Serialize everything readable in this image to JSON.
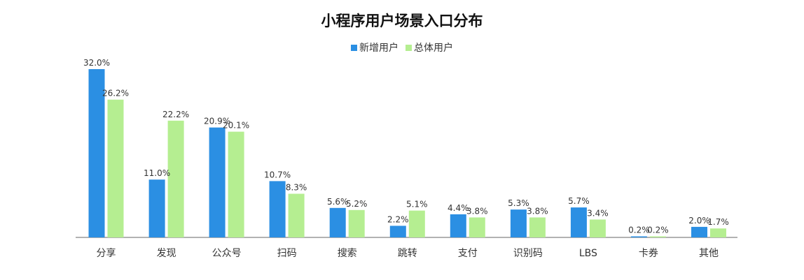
{
  "chart_data": {
    "type": "bar",
    "title": "小程序用户场景入口分布",
    "xlabel": "",
    "ylabel": "",
    "ylim": [
      0,
      35
    ],
    "grid": false,
    "legend_position": "top-center",
    "categories": [
      "分享",
      "发现",
      "公众号",
      "扫码",
      "搜索",
      "跳转",
      "支付",
      "识别码",
      "LBS",
      "卡券",
      "其他"
    ],
    "series": [
      {
        "name": "新增用户",
        "color": "#2b8fe3",
        "values": [
          32.0,
          11.0,
          20.9,
          10.7,
          5.6,
          2.2,
          4.4,
          5.3,
          5.7,
          0.2,
          2.0
        ],
        "labels": [
          "32.0%",
          "11.0%",
          "20.9%",
          "10.7%",
          "5.6%",
          "2.2%",
          "4.4%",
          "5.3%",
          "5.7%",
          "0.2%",
          "2.0%"
        ]
      },
      {
        "name": "总体用户",
        "color": "#b5ee91",
        "values": [
          26.2,
          22.2,
          20.1,
          8.3,
          5.2,
          5.1,
          3.8,
          3.8,
          3.4,
          0.2,
          1.7
        ],
        "labels": [
          "26.2%",
          "22.2%",
          "20.1%",
          "8.3%",
          "5.2%",
          "5.1%",
          "3.8%",
          "3.8%",
          "3.4%",
          "0.2%",
          "1.7%"
        ]
      }
    ]
  }
}
